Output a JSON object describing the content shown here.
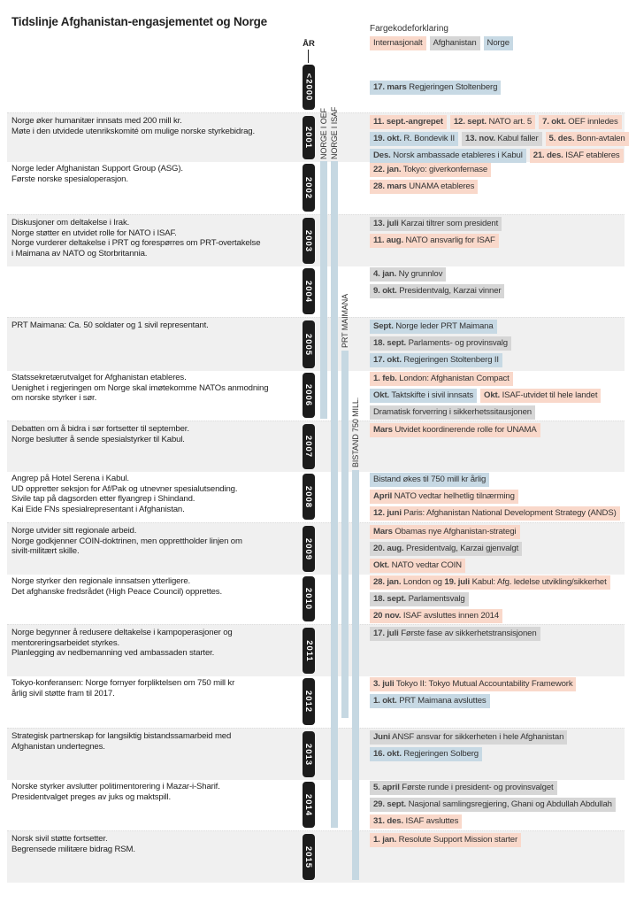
{
  "title": "Tidslinje Afghanistan-engasjementet og Norge",
  "legend": {
    "title": "Fargekodeforklaring",
    "items": [
      {
        "label": "Internasjonalt",
        "cat": "int"
      },
      {
        "label": "Afghanistan",
        "cat": "afg"
      },
      {
        "label": "Norge",
        "cat": "nor"
      }
    ]
  },
  "colors": {
    "int": "#f9d8ca",
    "afg": "#d6d6d6",
    "nor": "#c7d9e4",
    "bar": "#c6d8e2"
  },
  "year_axis_label": "ÅR",
  "bars": [
    {
      "label": "NORGE I OEF",
      "from": "2001",
      "to": "2006"
    },
    {
      "label": "NORGE I ISAF",
      "from": "2001",
      "to": "2014"
    },
    {
      "label": "PRT MAIMANA",
      "from": "2005",
      "to": "2012"
    },
    {
      "label": "BISTAND 750 MILL.",
      "from": "2008",
      "to": "2015"
    }
  ],
  "years": [
    {
      "year": "<2000",
      "left": [],
      "events": [
        [],
        [
          {
            "cat": "nor",
            "date": "17. mars",
            "text": "Regjeringen Stoltenberg"
          }
        ]
      ]
    },
    {
      "year": "2001",
      "left": [
        "Norge øker humanitær innsats med 200 mill kr.",
        "Møte i den utvidede utenrikskomité om mulige norske styrkebidrag."
      ],
      "events": [
        [
          {
            "cat": "int",
            "date": "11. sept.-angrepet",
            "text": ""
          },
          {
            "cat": "int",
            "date": "12. sept.",
            "text": "NATO art. 5"
          },
          {
            "cat": "int",
            "date": "7. okt.",
            "text": "OEF innledes"
          }
        ],
        [
          {
            "cat": "nor",
            "date": "19. okt.",
            "text": "R. Bondevik II"
          },
          {
            "cat": "afg",
            "date": "13. nov.",
            "text": "Kabul faller"
          },
          {
            "cat": "int",
            "date": "5. des.",
            "text": "Bonn-avtalen"
          }
        ],
        [
          {
            "cat": "nor",
            "date": "Des.",
            "text": "Norsk ambassade etableres i Kabul"
          },
          {
            "cat": "int",
            "date": "21. des.",
            "text": "ISAF etableres"
          }
        ]
      ]
    },
    {
      "year": "2002",
      "left": [
        "Norge leder Afghanistan Support Group (ASG).",
        "Første norske spesialoperasjon."
      ],
      "events": [
        [
          {
            "cat": "int",
            "date": "22. jan.",
            "text": "Tokyo: giverkonfernase"
          }
        ],
        [
          {
            "cat": "int",
            "date": "28. mars",
            "text": "UNAMA etableres"
          }
        ]
      ]
    },
    {
      "year": "2003",
      "left": [
        "Diskusjoner om deltakelse i Irak.",
        "Norge støtter en utvidet rolle for NATO i ISAF.",
        "Norge vurderer deltakelse i PRT og forespørres om PRT-overtakelse",
        "i Maimana av NATO og Storbritannia."
      ],
      "events": [
        [
          {
            "cat": "afg",
            "date": "13. juli",
            "text": "Karzai tiltrer som president"
          }
        ],
        [
          {
            "cat": "int",
            "date": "11. aug.",
            "text": "NATO ansvarlig for ISAF"
          }
        ]
      ]
    },
    {
      "year": "2004",
      "left": [],
      "events": [
        [
          {
            "cat": "afg",
            "date": "4. jan.",
            "text": "Ny grunnlov"
          }
        ],
        [
          {
            "cat": "afg",
            "date": "9. okt.",
            "text": "Presidentvalg, Karzai vinner"
          }
        ]
      ]
    },
    {
      "year": "2005",
      "left": [
        "PRT Maimana: Ca. 50 soldater og 1 sivil representant."
      ],
      "events": [
        [
          {
            "cat": "nor",
            "date": "Sept.",
            "text": "Norge leder PRT Maimana"
          }
        ],
        [
          {
            "cat": "afg",
            "date": "18. sept.",
            "text": "Parlaments- og provinsvalg"
          }
        ],
        [
          {
            "cat": "nor",
            "date": "17. okt.",
            "text": "Regjeringen Stoltenberg II"
          }
        ]
      ]
    },
    {
      "year": "2006",
      "left": [
        "Statssekretærutvalget for Afghanistan etableres.",
        "Uenighet i regjeringen om Norge skal imøtekomme NATOs anmodning",
        "om norske styrker i sør."
      ],
      "events": [
        [
          {
            "cat": "int",
            "date": "1. feb.",
            "text": "London: Afghanistan Compact"
          }
        ],
        [
          {
            "cat": "nor",
            "date": "Okt.",
            "text": "Taktskifte i sivil innsats"
          },
          {
            "cat": "int",
            "date": "Okt.",
            "text": "ISAF-utvidet til hele landet"
          }
        ],
        [
          {
            "cat": "afg",
            "date": "",
            "text": "Dramatisk forverring i sikkerhetssitausjonen"
          }
        ]
      ]
    },
    {
      "year": "2007",
      "left": [
        "Debatten om å bidra i sør fortsetter til september.",
        "Norge beslutter å sende spesialstyrker til Kabul."
      ],
      "events": [
        [
          {
            "cat": "int",
            "date": "Mars",
            "text": "Utvidet koordinerende rolle for UNAMA"
          }
        ]
      ]
    },
    {
      "year": "2008",
      "left": [
        "Angrep på Hotel Serena i Kabul.",
        "UD oppretter seksjon for Af/Pak og utnevner spesialutsending.",
        "Sivile tap på dagsorden etter flyangrep i Shindand.",
        "Kai Eide FNs spesialrepresentant i Afghanistan."
      ],
      "events": [
        [
          {
            "cat": "nor",
            "date": "",
            "text": "Bistand økes til 750 mill kr årlig"
          }
        ],
        [
          {
            "cat": "int",
            "date": "April",
            "text": "NATO vedtar helhetlig tilnærming"
          }
        ],
        [
          {
            "cat": "int",
            "date": "12. juni",
            "text": "Paris: Afghanistan National Development Strategy (ANDS)"
          }
        ]
      ]
    },
    {
      "year": "2009",
      "left": [
        "Norge utvider sitt regionale arbeid.",
        "Norge godkjenner COIN-doktrinen, men opprettholder linjen om",
        "sivilt-militært skille."
      ],
      "events": [
        [
          {
            "cat": "int",
            "date": "Mars",
            "text": "Obamas nye Afghanistan-strategi"
          }
        ],
        [
          {
            "cat": "afg",
            "date": "20. aug.",
            "text": "Presidentvalg, Karzai gjenvalgt"
          }
        ],
        [
          {
            "cat": "int",
            "date": "Okt.",
            "text": "NATO vedtar COIN"
          }
        ]
      ]
    },
    {
      "year": "2010",
      "left": [
        "Norge styrker den regionale innsatsen ytterligere.",
        "Det afghanske fredsrådet (High Peace Council) opprettes."
      ],
      "events": [
        [
          {
            "cat": "int",
            "date": "28. jan.",
            "text": "London og",
            "date2": "19. juli",
            "text2": "Kabul: Afg. ledelse utvikling/sikkerhet"
          }
        ],
        [
          {
            "cat": "afg",
            "date": "18. sept.",
            "text": "Parlamentsvalg"
          }
        ],
        [
          {
            "cat": "int",
            "date": "20 nov.",
            "text": "ISAF avsluttes innen 2014"
          }
        ]
      ]
    },
    {
      "year": "2011",
      "left": [
        "Norge begynner å redusere deltakelse i kampoperasjoner og",
        "mentoreringsarbeidet styrkes.",
        "Planlegging av nedbemanning ved ambassaden starter."
      ],
      "events": [
        [
          {
            "cat": "afg",
            "date": "17. juli",
            "text": "Første fase av sikkerhetstransisjonen"
          }
        ]
      ]
    },
    {
      "year": "2012",
      "left": [
        "Tokyo-konferansen: Norge fornyer forpliktelsen om 750 mill kr",
        "årlig sivil støtte fram til 2017."
      ],
      "events": [
        [
          {
            "cat": "int",
            "date": "3. juli",
            "text": "Tokyo II: Tokyo Mutual Accountability Framework"
          }
        ],
        [
          {
            "cat": "nor",
            "date": "1. okt.",
            "text": "PRT Maimana avsluttes"
          }
        ]
      ]
    },
    {
      "year": "2013",
      "left": [
        "Strategisk partnerskap for langsiktig bistandssamarbeid med",
        "Afghanistan undertegnes."
      ],
      "events": [
        [
          {
            "cat": "afg",
            "date": "Juni",
            "text": "ANSF ansvar for sikkerheten i hele Afghanistan"
          }
        ],
        [
          {
            "cat": "nor",
            "date": "16. okt.",
            "text": "Regjeringen Solberg"
          }
        ]
      ]
    },
    {
      "year": "2014",
      "left": [
        "Norske styrker avslutter politimentorering i Mazar-i-Sharif.",
        "Presidentvalget preges av juks og maktspill."
      ],
      "events": [
        [
          {
            "cat": "afg",
            "date": "5. april",
            "text": "Første runde i president- og provinsvalget"
          }
        ],
        [
          {
            "cat": "afg",
            "date": "29. sept.",
            "text": "Nasjonal samlingsregjering, Ghani og Abdullah Abdullah"
          }
        ],
        [
          {
            "cat": "int",
            "date": "31. des.",
            "text": "ISAF avsluttes"
          }
        ]
      ]
    },
    {
      "year": "2015",
      "left": [
        "Norsk sivil støtte fortsetter.",
        "Begrensede militære bidrag RSM."
      ],
      "events": [
        [
          {
            "cat": "int",
            "date": "1. jan.",
            "text": "Resolute Support Mission starter"
          }
        ]
      ]
    }
  ]
}
